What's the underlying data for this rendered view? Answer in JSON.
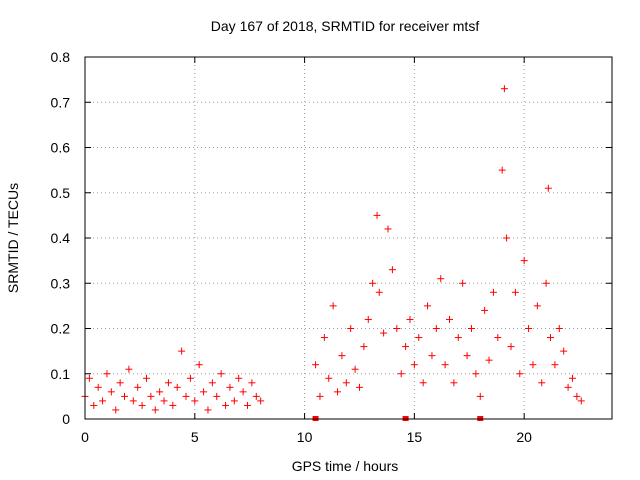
{
  "chart_data": {
    "type": "scatter",
    "title": "Day 167 of 2018, SRMTID for receiver mtsf",
    "xlabel": "GPS time / hours",
    "ylabel": "SRMTID / TECUs",
    "xlim": [
      0,
      24
    ],
    "ylim": [
      0,
      0.8
    ],
    "grid": true,
    "x_ticks": [
      0,
      5,
      10,
      15,
      20
    ],
    "x_tick_labels": [
      "0",
      "5",
      "10",
      "15",
      "20"
    ],
    "y_ticks": [
      0,
      0.1,
      0.2,
      0.3,
      0.4,
      0.5,
      0.6,
      0.7,
      0.8
    ],
    "y_tick_labels": [
      "0",
      "0.1",
      "0.2",
      "0.3",
      "0.4",
      "0.5",
      "0.6",
      "0.7",
      "0.8"
    ],
    "marker": "+",
    "color": "#ff0000",
    "series": [
      {
        "name": "mtsf",
        "x": [
          0.0,
          0.2,
          0.4,
          0.6,
          0.8,
          1.0,
          1.2,
          1.4,
          1.6,
          1.8,
          2.0,
          2.2,
          2.4,
          2.6,
          2.8,
          3.0,
          3.2,
          3.4,
          3.6,
          3.8,
          4.0,
          4.2,
          4.4,
          4.6,
          4.8,
          5.0,
          5.2,
          5.4,
          5.6,
          5.8,
          6.0,
          6.2,
          6.4,
          6.6,
          6.8,
          7.0,
          7.2,
          7.4,
          7.6,
          7.8,
          8.0,
          10.5,
          10.7,
          10.9,
          11.1,
          11.3,
          11.5,
          11.7,
          11.9,
          12.1,
          12.3,
          12.5,
          12.7,
          12.9,
          13.1,
          13.3,
          13.4,
          13.6,
          13.8,
          14.0,
          14.2,
          14.4,
          14.6,
          14.8,
          15.0,
          15.2,
          15.4,
          15.6,
          15.8,
          16.0,
          16.2,
          16.4,
          16.6,
          16.8,
          17.0,
          17.2,
          17.4,
          17.6,
          17.8,
          18.0,
          18.2,
          18.4,
          18.6,
          18.8,
          19.0,
          19.1,
          19.2,
          19.4,
          19.6,
          19.8,
          20.0,
          20.2,
          20.4,
          20.6,
          20.8,
          21.0,
          21.1,
          21.2,
          21.4,
          21.6,
          21.8,
          22.0,
          22.2,
          22.4,
          22.6
        ],
        "y": [
          0.05,
          0.09,
          0.03,
          0.07,
          0.04,
          0.1,
          0.06,
          0.02,
          0.08,
          0.05,
          0.11,
          0.04,
          0.07,
          0.03,
          0.09,
          0.05,
          0.02,
          0.06,
          0.04,
          0.08,
          0.03,
          0.07,
          0.15,
          0.05,
          0.09,
          0.04,
          0.12,
          0.06,
          0.02,
          0.08,
          0.05,
          0.1,
          0.03,
          0.07,
          0.04,
          0.09,
          0.06,
          0.03,
          0.08,
          0.05,
          0.04,
          0.12,
          0.05,
          0.18,
          0.09,
          0.25,
          0.06,
          0.14,
          0.08,
          0.2,
          0.11,
          0.07,
          0.16,
          0.22,
          0.3,
          0.45,
          0.28,
          0.19,
          0.42,
          0.33,
          0.2,
          0.1,
          0.16,
          0.22,
          0.12,
          0.18,
          0.08,
          0.25,
          0.14,
          0.2,
          0.31,
          0.12,
          0.22,
          0.08,
          0.18,
          0.3,
          0.14,
          0.2,
          0.1,
          0.05,
          0.24,
          0.13,
          0.28,
          0.18,
          0.55,
          0.73,
          0.4,
          0.16,
          0.28,
          0.1,
          0.35,
          0.2,
          0.12,
          0.25,
          0.08,
          0.3,
          0.51,
          0.18,
          0.12,
          0.2,
          0.15,
          0.07,
          0.09,
          0.05,
          0.04
        ]
      }
    ],
    "gap_markers_x": [
      10.5,
      14.6,
      18.0
    ]
  }
}
